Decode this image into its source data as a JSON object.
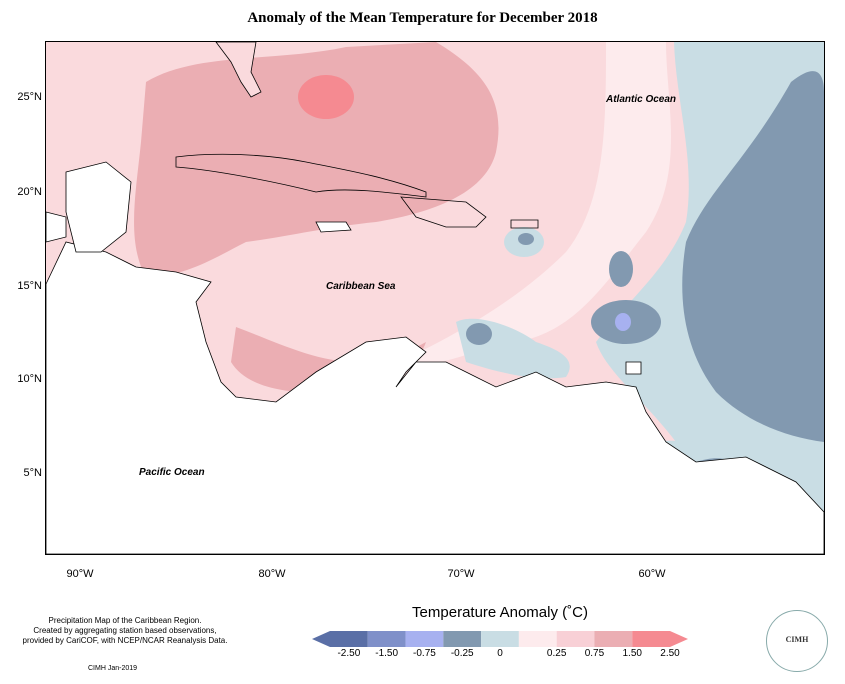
{
  "title": "Anomaly of the Mean Temperature for December 2018",
  "lat_labels": [
    "25°N",
    "20°N",
    "15°N",
    "10°N",
    "5°N"
  ],
  "lon_labels": [
    "90°W",
    "80°W",
    "70°W",
    "60°W"
  ],
  "ocean_labels": {
    "atlantic": "Atlantic Ocean",
    "caribbean": "Caribbean Sea",
    "pacific": "Pacific Ocean"
  },
  "credit": {
    "line1": "Precipitation Map of the Caribbean Region.",
    "line2": "Created by aggregating station based observations,",
    "line3": "provided by CariCOF, with NCEP/NCAR Reanalysis Data.",
    "date": "CIMH Jan-2019"
  },
  "legend": {
    "title": "Temperature Anomaly (˚C)",
    "labels": [
      "-2.50",
      "-1.50",
      "-0.75",
      "-0.25",
      "0",
      "0.25",
      "0.75",
      "1.50",
      "2.50"
    ],
    "colors": [
      "#5a6fa6",
      "#7f90c9",
      "#a7b1f0",
      "#8299b0",
      "#c9dde4",
      "#fdebed",
      "#f8d0d6",
      "#ebaeb3",
      "#f58a91"
    ]
  },
  "logo": {
    "text": "CIMH"
  }
}
